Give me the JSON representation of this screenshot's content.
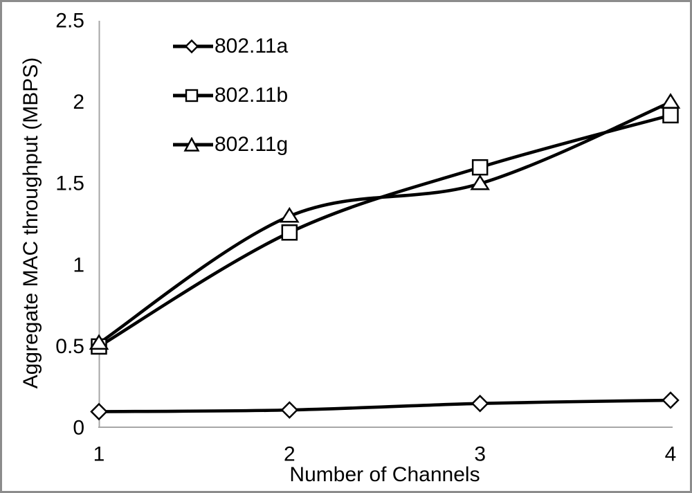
{
  "figure": {
    "border_color": "#8c8c8c",
    "background_color": "#ffffff"
  },
  "chart_data": {
    "type": "line",
    "title": "",
    "xlabel": "Number of Channels",
    "ylabel": "Aggregate MAC throughput (MBPS)",
    "x": [
      1,
      2,
      3,
      4
    ],
    "x_tick_labels": [
      "1",
      "2",
      "3",
      "4"
    ],
    "y_tick_labels": [
      "0",
      "0.5",
      "1",
      "1.5",
      "2",
      "2.5"
    ],
    "xlim": [
      1,
      4
    ],
    "ylim": [
      0,
      2.5
    ],
    "grid": false,
    "smoothed_lines": true,
    "legend_position": "inside-top-left",
    "line_color": "#000000",
    "marker_fill": "#ffffff",
    "axis_color": "#a6a6a6",
    "text_color": "#000000",
    "series": [
      {
        "name": "802.11a",
        "marker": "diamond",
        "marker_icon": "diamond-marker-icon",
        "values": [
          0.1,
          0.11,
          0.15,
          0.17
        ]
      },
      {
        "name": "802.11b",
        "marker": "square",
        "marker_icon": "square-marker-icon",
        "values": [
          0.5,
          1.2,
          1.6,
          1.92
        ]
      },
      {
        "name": "802.11g",
        "marker": "triangle",
        "marker_icon": "triangle-marker-icon",
        "values": [
          0.52,
          1.3,
          1.5,
          2.0
        ]
      }
    ]
  }
}
